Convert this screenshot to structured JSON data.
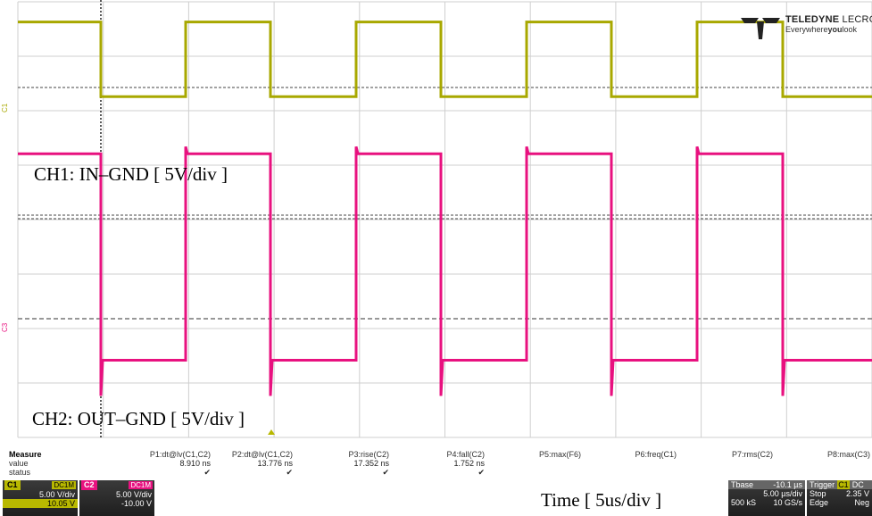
{
  "brand": {
    "name_bold": "TELEDYNE",
    "name_rest": "LECROY",
    "tag_pre": "Everywhere",
    "tag_bold": "you",
    "tag_post": "look"
  },
  "annotations": {
    "ch1": "CH1: IN–GND [ 5V/div ]",
    "ch2": "CH2: OUT–GND [ 5V/div ]",
    "time": "Time [ 5us/div ]"
  },
  "channels": {
    "c1": {
      "marker": "C1",
      "color": "#a8a800",
      "high_level": 0.95,
      "low_level": 0.78
    },
    "c2": {
      "marker": "C3",
      "color": "#e8117f",
      "high_level": 0.65,
      "low_level": 0.18
    }
  },
  "measure": {
    "title": "Measure",
    "row_value": "value",
    "row_status": "status",
    "columns": [
      {
        "name": "P1:dt@lv(C1,C2)",
        "value": "8.910 ns",
        "check": "✔"
      },
      {
        "name": "P2:dt@lv(C1,C2)",
        "value": "13.776 ns",
        "check": "✔"
      },
      {
        "name": "P3:rise(C2)",
        "value": "17.352 ns",
        "check": "✔"
      },
      {
        "name": "P4:fall(C2)",
        "value": "1.752 ns",
        "check": "✔"
      },
      {
        "name": "P5:max(F6)",
        "value": "",
        "check": ""
      },
      {
        "name": "P6:freq(C1)",
        "value": "",
        "check": ""
      },
      {
        "name": "P7:rms(C2)",
        "value": "",
        "check": ""
      },
      {
        "name": "P8:max(C3)",
        "value": "",
        "check": ""
      }
    ]
  },
  "chan_boxes": [
    {
      "name": "C1",
      "coupling": "DC1M",
      "vdiv": "5.00 V/div",
      "offset": "10.05 V",
      "color": "#b8b800"
    },
    {
      "name": "C2",
      "coupling": "DC1M",
      "vdiv": "5.00 V/div",
      "offset": "-10.00 V",
      "color": "#e8117f"
    }
  ],
  "timebase": {
    "label": "Tbase",
    "delay": "-10.1 µs",
    "tdiv": "5.00 µs/div",
    "samples": "500 kS",
    "rate": "10 GS/s"
  },
  "trigger": {
    "label": "Trigger",
    "src": "C1",
    "coupling": "DC",
    "mode": "Stop",
    "level": "2.35 V",
    "type": "Edge",
    "slope": "Neg"
  }
}
